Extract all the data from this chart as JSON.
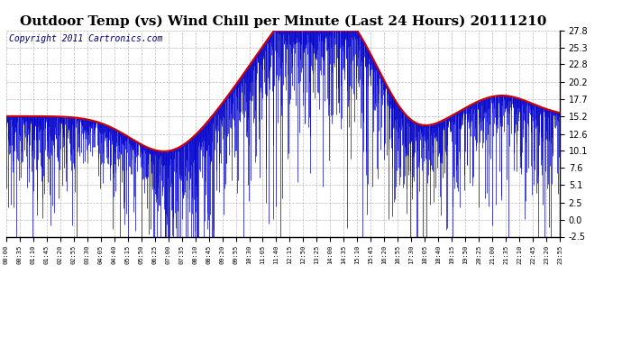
{
  "title": "Outdoor Temp (vs) Wind Chill per Minute (Last 24 Hours) 20111210",
  "copyright_text": "Copyright 2011 Cartronics.com",
  "y_ticks": [
    -2.5,
    0.0,
    2.5,
    5.1,
    7.6,
    10.1,
    12.6,
    15.2,
    17.7,
    20.2,
    22.8,
    25.3,
    27.8
  ],
  "x_tick_labels": [
    "00:00",
    "00:35",
    "01:10",
    "01:45",
    "02:20",
    "02:55",
    "03:30",
    "04:05",
    "04:40",
    "05:15",
    "05:50",
    "06:25",
    "07:00",
    "07:35",
    "08:10",
    "08:45",
    "09:20",
    "09:55",
    "10:30",
    "11:05",
    "11:40",
    "12:15",
    "12:50",
    "13:25",
    "14:00",
    "14:35",
    "15:10",
    "15:45",
    "16:20",
    "16:55",
    "17:30",
    "18:05",
    "18:40",
    "19:15",
    "19:50",
    "20:25",
    "21:00",
    "21:35",
    "22:10",
    "22:45",
    "23:20",
    "23:55"
  ],
  "ylim": [
    -2.5,
    27.8
  ],
  "background_color": "#ffffff",
  "plot_bg_color": "#ffffff",
  "grid_color": "#aaaaaa",
  "outer_border_color": "#000000",
  "line_color_red": "#cc0000",
  "bar_color_blue": "#0000cc",
  "title_fontsize": 11,
  "copyright_fontsize": 7
}
